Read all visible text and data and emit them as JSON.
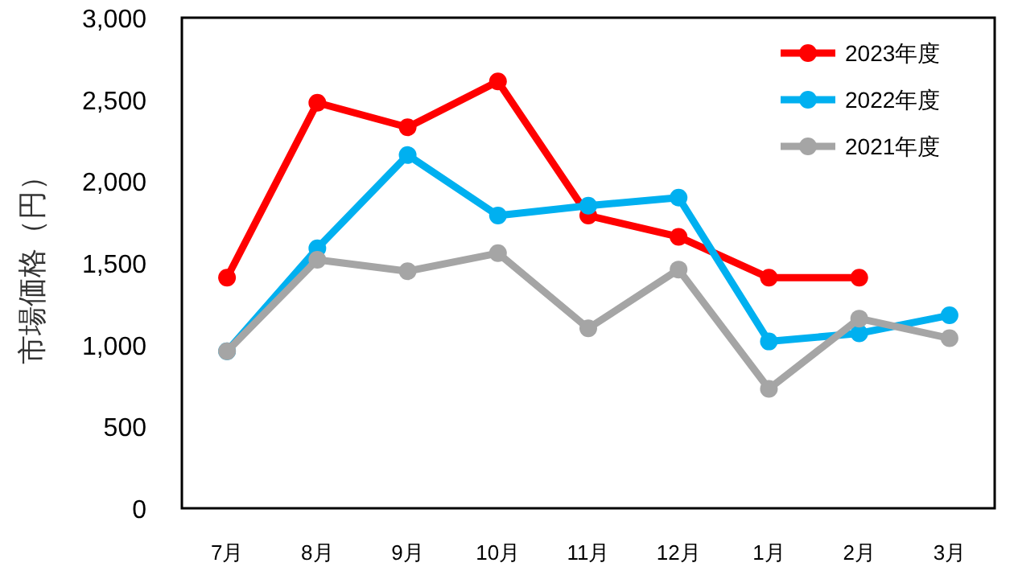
{
  "chart_data": {
    "type": "line",
    "ylabel": "市場価格（円）",
    "categories": [
      "7月",
      "8月",
      "9月",
      "10月",
      "11月",
      "12月",
      "1月",
      "2月",
      "3月"
    ],
    "series": [
      {
        "name": "2023年度",
        "color": "#ff0000",
        "values": [
          1410,
          2480,
          2330,
          2610,
          1790,
          1660,
          1410,
          1410,
          null
        ]
      },
      {
        "name": "2022年度",
        "color": "#00b0f0",
        "values": [
          960,
          1590,
          2160,
          1790,
          1850,
          1900,
          1020,
          1070,
          1180
        ]
      },
      {
        "name": "2021年度",
        "color": "#a5a5a5",
        "values": [
          960,
          1520,
          1450,
          1560,
          1100,
          1460,
          730,
          1160,
          1040
        ]
      }
    ],
    "ylim": [
      0,
      3000
    ],
    "yticks": [
      {
        "value": 0,
        "label": "0"
      },
      {
        "value": 500,
        "label": "500"
      },
      {
        "value": 1000,
        "label": "1,000"
      },
      {
        "value": 1500,
        "label": "1,500"
      },
      {
        "value": 2000,
        "label": "2,000"
      },
      {
        "value": 2500,
        "label": "2,500"
      },
      {
        "value": 3000,
        "label": "3,000"
      }
    ],
    "legend": "top right",
    "marker": "circle"
  }
}
